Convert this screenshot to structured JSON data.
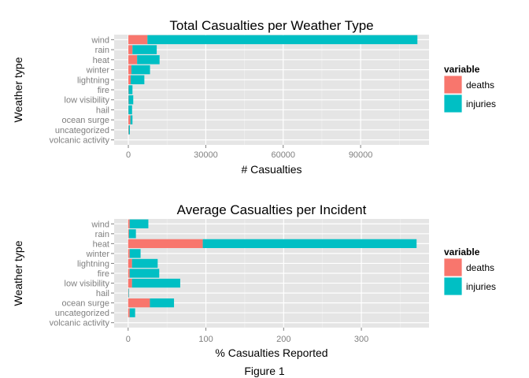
{
  "figure": {
    "caption": "Figure 1"
  },
  "colors": {
    "deaths": "#F8766D",
    "injuries": "#00BFC4",
    "panel_bg": "#E5E5E5",
    "grid": "#FFFFFF",
    "tick_text": "#7F7F7F"
  },
  "chart_data": [
    {
      "type": "bar",
      "orientation": "horizontal",
      "stacked": true,
      "title": "Total Casualties per Weather Type",
      "xlabel": "# Casualties",
      "ylabel": "Weather type",
      "categories": [
        "wind",
        "rain",
        "heat",
        "winter",
        "lightning",
        "fire",
        "low visibility",
        "hail",
        "ocean surge",
        "uncategorized",
        "volcanic activity"
      ],
      "series": [
        {
          "name": "deaths",
          "values": [
            7400,
            1600,
            3400,
            1200,
            900,
            100,
            100,
            50,
            800,
            150,
            0
          ]
        },
        {
          "name": "injuries",
          "values": [
            104600,
            9400,
            8700,
            7200,
            5300,
            1500,
            1800,
            1400,
            800,
            450,
            0
          ]
        }
      ],
      "xlim": [
        -5500,
        116500
      ],
      "xticks": [
        0,
        30000,
        60000,
        90000
      ],
      "xtick_labels": [
        "0",
        "30000",
        "60000",
        "90000"
      ],
      "grid": true,
      "legend": {
        "title": "variable",
        "placement": "right"
      }
    },
    {
      "type": "bar",
      "orientation": "horizontal",
      "stacked": true,
      "title": "Average Casualties per Incident",
      "xlabel": "% Casualties Reported",
      "ylabel": "Weather type",
      "categories": [
        "wind",
        "rain",
        "heat",
        "winter",
        "lightning",
        "fire",
        "low visibility",
        "hail",
        "ocean surge",
        "uncategorized",
        "volcanic activity"
      ],
      "series": [
        {
          "name": "deaths",
          "values": [
            2,
            1,
            96,
            2,
            5,
            2,
            5,
            0.5,
            28,
            2,
            0
          ]
        },
        {
          "name": "injuries",
          "values": [
            24,
            9,
            275,
            14,
            33,
            38,
            62,
            0.5,
            31,
            7,
            0
          ]
        }
      ],
      "xlim": [
        -18,
        387
      ],
      "xticks": [
        0,
        100,
        200,
        300
      ],
      "xtick_labels": [
        "0",
        "100",
        "200",
        "300"
      ],
      "grid": true,
      "legend": {
        "title": "variable",
        "placement": "right"
      }
    }
  ]
}
